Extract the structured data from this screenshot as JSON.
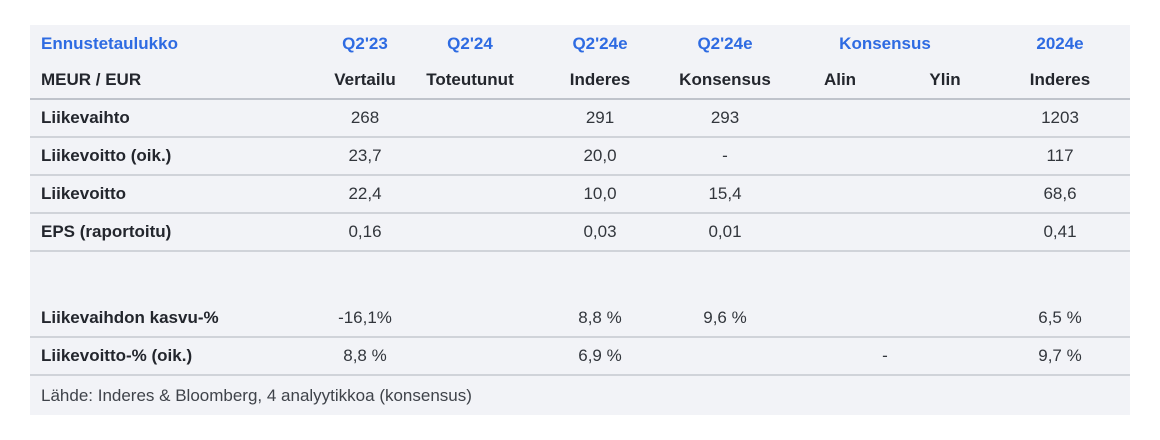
{
  "colors": {
    "accent_blue": "#2e6be2",
    "table_background": "#f2f3f7",
    "separator": "#d0d3d9",
    "label_text": "#23262d"
  },
  "chart_data": {
    "type": "table",
    "title": "Ennustetaulukko",
    "unit_label": "MEUR /  EUR",
    "column_groups": [
      "Q2'23",
      "Q2'24",
      "Q2'24e",
      "Q2'24e",
      "Konsensus",
      "2024e"
    ],
    "columns": [
      "Vertailu",
      "Toteutunut",
      "Inderes",
      "Konsensus",
      "Alin",
      "Ylin",
      "Inderes"
    ],
    "rows": [
      {
        "label": "Liikevaihto",
        "vertailu": "268",
        "toteutunut": "",
        "inderes": "291",
        "konsensus": "293",
        "alin_ylin": "",
        "inderes_2024e": "1203"
      },
      {
        "label": "Liikevoitto (oik.)",
        "vertailu": "23,7",
        "toteutunut": "",
        "inderes": "20,0",
        "konsensus": "-",
        "alin_ylin": "",
        "inderes_2024e": "117"
      },
      {
        "label": "Liikevoitto",
        "vertailu": "22,4",
        "toteutunut": "",
        "inderes": "10,0",
        "konsensus": "15,4",
        "alin_ylin": "",
        "inderes_2024e": "68,6"
      },
      {
        "label": "EPS (raportoitu)",
        "vertailu": "0,16",
        "toteutunut": "",
        "inderes": "0,03",
        "konsensus": "0,01",
        "alin_ylin": "",
        "inderes_2024e": "0,41"
      },
      {
        "label": "Liikevaihdon kasvu-%",
        "vertailu": "-16,1%",
        "toteutunut": "",
        "inderes": "8,8 %",
        "konsensus": "9,6 %",
        "alin_ylin": "",
        "inderes_2024e": "6,5 %"
      },
      {
        "label": "Liikevoitto-% (oik.)",
        "vertailu": "8,8 %",
        "toteutunut": "",
        "inderes": "6,9 %",
        "konsensus": "",
        "alin_ylin": "-",
        "inderes_2024e": "9,7 %"
      }
    ],
    "source": "Lähde: Inderes & Bloomberg, 4 analyytikkoa (konsensus)"
  }
}
